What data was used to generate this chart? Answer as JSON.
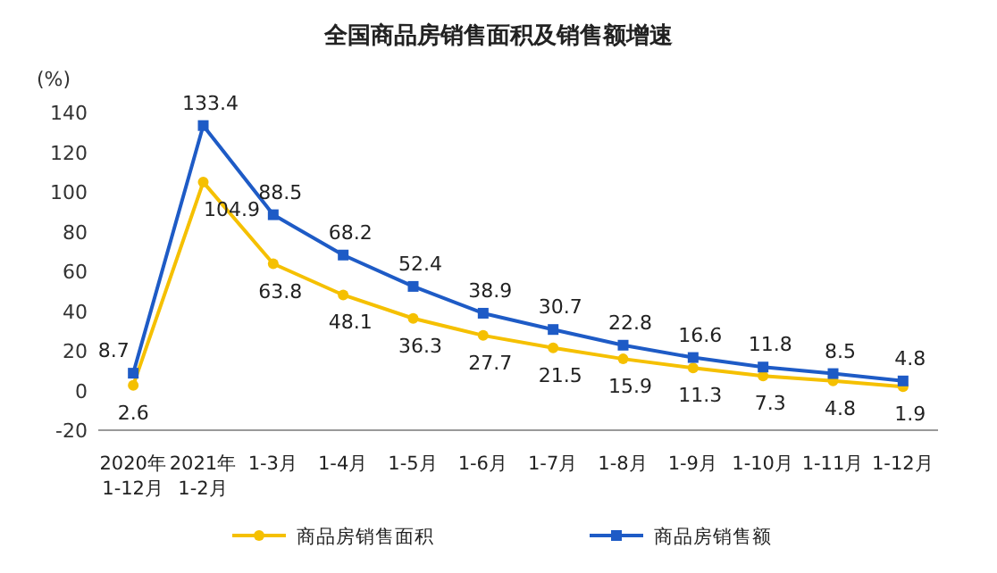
{
  "chart_data": {
    "type": "line",
    "title": "全国商品房销售面积及销售额增速",
    "ylabel": "(%)",
    "categories": [
      "2020年 1-12月",
      "2021年 1-2月",
      "1-3月",
      "1-4月",
      "1-5月",
      "1-6月",
      "1-7月",
      "1-8月",
      "1-9月",
      "1-10月",
      "1-11月",
      "1-12月"
    ],
    "series": [
      {
        "name": "商品房销售面积",
        "color": "#f5c000",
        "marker": "circle",
        "values": [
          2.6,
          104.9,
          63.8,
          48.1,
          36.3,
          27.7,
          21.5,
          15.9,
          11.3,
          7.3,
          4.8,
          1.9
        ]
      },
      {
        "name": "商品房销售额",
        "color": "#1e5bc6",
        "marker": "square",
        "values": [
          8.7,
          133.4,
          88.5,
          68.2,
          52.4,
          38.9,
          30.7,
          22.8,
          16.6,
          11.8,
          8.5,
          4.8
        ]
      }
    ],
    "ylim": [
      -20,
      140
    ],
    "yticks": [
      -20,
      0,
      20,
      40,
      60,
      80,
      100,
      120,
      140
    ],
    "data_labels": true,
    "legend": "bottom",
    "grid": false
  }
}
